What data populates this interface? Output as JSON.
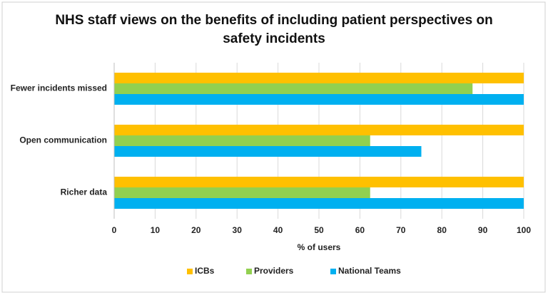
{
  "chart_data": {
    "type": "bar",
    "orientation": "horizontal",
    "title": "NHS staff views on the benefits of including patient perspectives on safety incidents",
    "x_label": "% of users",
    "categories": [
      "Fewer incidents missed",
      "Open communication",
      "Richer data"
    ],
    "series": [
      {
        "name": "ICBs",
        "color": "#FFC000",
        "values": [
          100,
          100,
          100
        ]
      },
      {
        "name": "Providers",
        "color": "#92D050",
        "values": [
          87.5,
          62.5,
          62.5
        ]
      },
      {
        "name": "National Teams",
        "color": "#00B0F0",
        "values": [
          100,
          75,
          100
        ]
      }
    ],
    "xlim": [
      0,
      100
    ],
    "xticks": [
      0,
      10,
      20,
      30,
      40,
      50,
      60,
      70,
      80,
      90,
      100
    ],
    "grid": true,
    "legend": "bottom"
  }
}
